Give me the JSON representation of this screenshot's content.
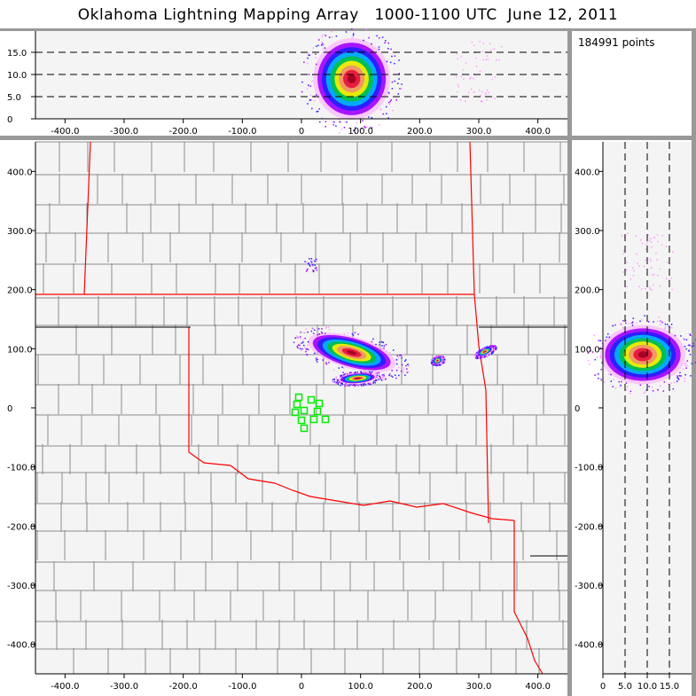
{
  "title": "Oklahoma Lightning Mapping Array   1000-1100 UTC  June 12, 2011",
  "info": {
    "points_label": "184991 points"
  },
  "colors": {
    "background": "#999999",
    "plot_bg": "#f4f4f4",
    "county_lines": "#8c8c8c",
    "state_borders": "#ff0000",
    "stations": "#00ee00"
  },
  "chart_data": [
    {
      "panel": "altitude-vs-east-west",
      "type": "heatmap",
      "x_ticks": [
        "-400.0",
        "-300.0",
        "-200.0",
        "-100.0",
        "0",
        "100.0",
        "200.0",
        "300.0",
        "400.0"
      ],
      "y_ticks": [
        "0",
        "5.0",
        "10.0",
        "15.0"
      ],
      "xlim": [
        -450,
        450
      ],
      "ylim": [
        0,
        20
      ],
      "dashed_gridlines_y": [
        5,
        10,
        15
      ],
      "density_core": {
        "x_km": [
          20,
          150
        ],
        "alt_km_peak": 9
      }
    },
    {
      "panel": "plan-view-map",
      "type": "heatmap",
      "x_ticks": [
        "-400.0",
        "-300.0",
        "-200.0",
        "-100.0",
        "0",
        "100.0",
        "200.0",
        "300.0",
        "400.0"
      ],
      "y_ticks": [
        "400.0",
        "300.0",
        "200.0",
        "100.0",
        "0",
        "-100.0",
        "-200.0",
        "-300.0",
        "-400.0"
      ],
      "xlim": [
        -450,
        450
      ],
      "ylim": [
        -450,
        450
      ],
      "stations_km": [
        [
          -4.5,
          18
        ],
        [
          16.5,
          13.5
        ],
        [
          -7.5,
          6
        ],
        [
          30,
          7.5
        ],
        [
          -10.5,
          -7.5
        ],
        [
          4.5,
          -4.5
        ],
        [
          27,
          -6
        ],
        [
          0,
          -21
        ],
        [
          21,
          -19.5
        ],
        [
          40.5,
          -19.5
        ],
        [
          4.5,
          -34.5
        ]
      ],
      "storm_core": {
        "from_km": [
          20,
          112
        ],
        "to_km": [
          150,
          75
        ]
      }
    },
    {
      "panel": "north-south-vs-altitude",
      "type": "heatmap",
      "x_ticks": [
        "0",
        "5.0",
        "10.0",
        "15.0"
      ],
      "y_ticks": [
        "400.0",
        "300.0",
        "200.0",
        "100.0",
        "0",
        "-100.0",
        "-200.0",
        "-300.0",
        "-400.0"
      ],
      "xlim": [
        0,
        20
      ],
      "ylim": [
        -450,
        450
      ],
      "dashed_gridlines_x": [
        5,
        10,
        15
      ],
      "density_core": {
        "y_km": [
          40,
          140
        ],
        "alt_km_peak": 9
      }
    }
  ]
}
